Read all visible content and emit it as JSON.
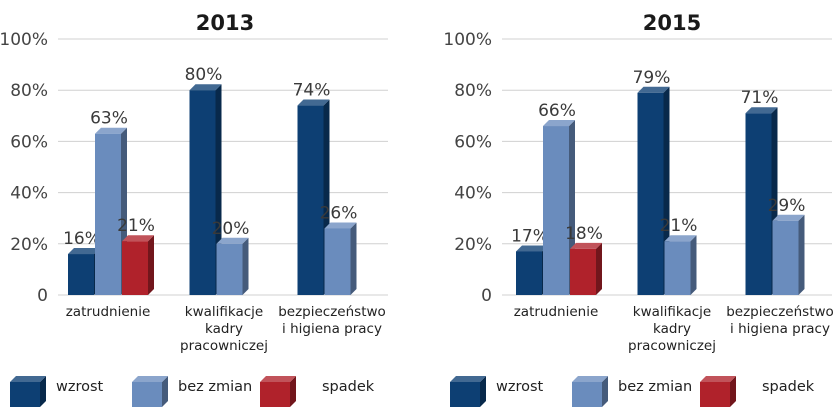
{
  "chart_data": [
    {
      "type": "bar",
      "title": "2013",
      "categories": [
        [
          "zatrudnienie"
        ],
        [
          "kwalifikacje",
          "kadry",
          "pracowniczej"
        ],
        [
          "bezpieczeństwo",
          "i higiena pracy"
        ]
      ],
      "series": [
        {
          "name": "wzrost",
          "color": "#0d3f73",
          "values": [
            16,
            80,
            74
          ],
          "labels": [
            "16%",
            "80%",
            "74%"
          ]
        },
        {
          "name": "bez zmian",
          "color": "#6a8cbd",
          "values": [
            63,
            20,
            26
          ],
          "labels": [
            "63%",
            "20%",
            "26%"
          ]
        },
        {
          "name": "spadek",
          "color": "#b0222b",
          "values": [
            21,
            null,
            null
          ],
          "labels": [
            "21%",
            null,
            null
          ]
        }
      ],
      "ylim": [
        0,
        100
      ],
      "yticks": [
        "0",
        "20%",
        "40%",
        "60%",
        "80%",
        "100%"
      ],
      "grid": true,
      "legend_position": "bottom"
    },
    {
      "type": "bar",
      "title": "2015",
      "categories": [
        [
          "zatrudnienie"
        ],
        [
          "kwalifikacje",
          "kadry",
          "pracowniczej"
        ],
        [
          "bezpieczeństwo",
          "i higiena pracy"
        ]
      ],
      "series": [
        {
          "name": "wzrost",
          "color": "#0d3f73",
          "values": [
            17,
            79,
            71
          ],
          "labels": [
            "17%",
            "79%",
            "71%"
          ]
        },
        {
          "name": "bez zmian",
          "color": "#6a8cbd",
          "values": [
            66,
            21,
            29
          ],
          "labels": [
            "66%",
            "21%",
            "29%"
          ]
        },
        {
          "name": "spadek",
          "color": "#b0222b",
          "values": [
            18,
            null,
            null
          ],
          "labels": [
            "18%",
            null,
            null
          ]
        }
      ],
      "ylim": [
        0,
        100
      ],
      "yticks": [
        "0",
        "20%",
        "40%",
        "60%",
        "80%",
        "100%"
      ],
      "grid": true,
      "legend_position": "bottom"
    }
  ]
}
